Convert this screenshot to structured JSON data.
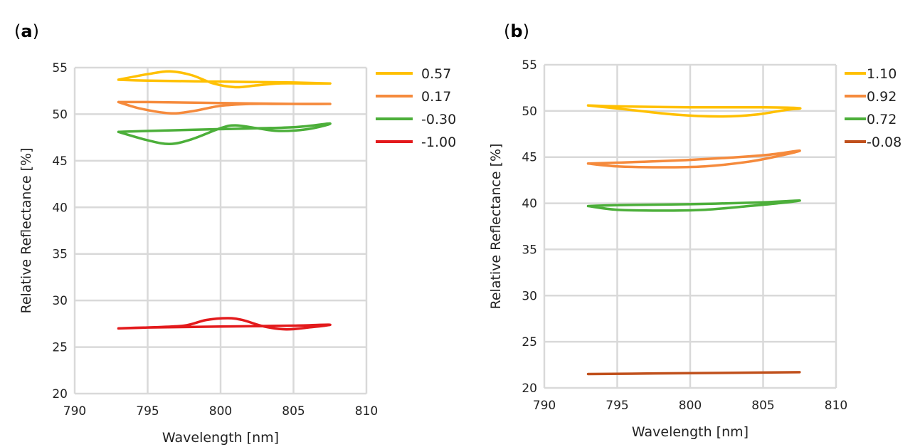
{
  "chart_data": [
    {
      "type": "line",
      "panel_label": "a",
      "xlabel": "Wavelength [nm]",
      "ylabel": "Relative Reflectance [%]",
      "xlim": [
        790,
        810
      ],
      "ylim": [
        20,
        55
      ],
      "xticks": [
        "790",
        "795",
        "800",
        "805",
        "810"
      ],
      "yticks": [
        "20",
        "25",
        "30",
        "35",
        "40",
        "45",
        "50",
        "55"
      ],
      "grid": true,
      "legend_position": "right",
      "series": [
        {
          "name": "0.57",
          "color": "#FFC000",
          "x": [
            793,
            795,
            796.5,
            798,
            799.5,
            801,
            802.5,
            804,
            806,
            807.5,
            805,
            800,
            795,
            793
          ],
          "y": [
            53.7,
            54.3,
            54.6,
            54.2,
            53.3,
            52.9,
            53.1,
            53.3,
            53.3,
            53.3,
            53.4,
            53.5,
            53.6,
            53.7
          ]
        },
        {
          "name": "0.17",
          "color": "#F58A3C",
          "x": [
            793,
            794.5,
            796.5,
            798,
            800,
            802,
            804,
            807.5,
            805,
            800,
            795,
            793
          ],
          "y": [
            51.3,
            50.6,
            50.1,
            50.3,
            50.9,
            51.1,
            51.1,
            51.1,
            51.1,
            51.2,
            51.3,
            51.3
          ]
        },
        {
          "name": "-0.30",
          "color": "#4CAF3A",
          "x": [
            793,
            795,
            796.5,
            798,
            800,
            801,
            802.5,
            804,
            806,
            807.5,
            805,
            800,
            795,
            793
          ],
          "y": [
            48.1,
            47.2,
            46.8,
            47.3,
            48.5,
            48.8,
            48.5,
            48.2,
            48.4,
            49.0,
            48.6,
            48.4,
            48.2,
            48.1
          ]
        },
        {
          "name": "-1.00",
          "color": "#E31A1C",
          "x": [
            793,
            795,
            797.5,
            799,
            800.5,
            801.5,
            803,
            804.5,
            806,
            807.5,
            805,
            800,
            795,
            793
          ],
          "y": [
            27.0,
            27.1,
            27.3,
            27.9,
            28.1,
            27.9,
            27.2,
            26.9,
            27.1,
            27.4,
            27.3,
            27.2,
            27.1,
            27.0
          ]
        }
      ]
    },
    {
      "type": "line",
      "panel_label": "b",
      "xlabel": "Wavelength [nm]",
      "ylabel": "Relative Reflectance [%]",
      "xlim": [
        790,
        810
      ],
      "ylim": [
        20,
        55
      ],
      "xticks": [
        "790",
        "795",
        "800",
        "805",
        "810"
      ],
      "yticks": [
        "20",
        "25",
        "30",
        "35",
        "40",
        "45",
        "50",
        "55"
      ],
      "grid": true,
      "legend_position": "right",
      "series": [
        {
          "name": "1.10",
          "color": "#FFC000",
          "x": [
            793,
            796,
            799,
            802,
            804.5,
            806.5,
            807.5,
            805,
            800,
            795,
            793
          ],
          "y": [
            50.6,
            50.1,
            49.6,
            49.4,
            49.6,
            50.1,
            50.3,
            50.4,
            50.4,
            50.5,
            50.6
          ]
        },
        {
          "name": "0.92",
          "color": "#F58A3C",
          "x": [
            793,
            795,
            798,
            801,
            804,
            806,
            807.5,
            805,
            800,
            795,
            793
          ],
          "y": [
            44.3,
            44.0,
            43.9,
            44.0,
            44.5,
            45.1,
            45.7,
            45.2,
            44.7,
            44.4,
            44.3
          ]
        },
        {
          "name": "0.72",
          "color": "#4CAF3A",
          "x": [
            793,
            795,
            798,
            801,
            804,
            806,
            807.5,
            805,
            800,
            795,
            793
          ],
          "y": [
            39.7,
            39.3,
            39.2,
            39.3,
            39.7,
            40.0,
            40.3,
            40.1,
            39.9,
            39.8,
            39.7
          ]
        },
        {
          "name": "-0.08",
          "color": "#C0501C",
          "x": [
            793,
            800,
            807.5
          ],
          "y": [
            21.5,
            21.6,
            21.7
          ]
        }
      ]
    }
  ]
}
